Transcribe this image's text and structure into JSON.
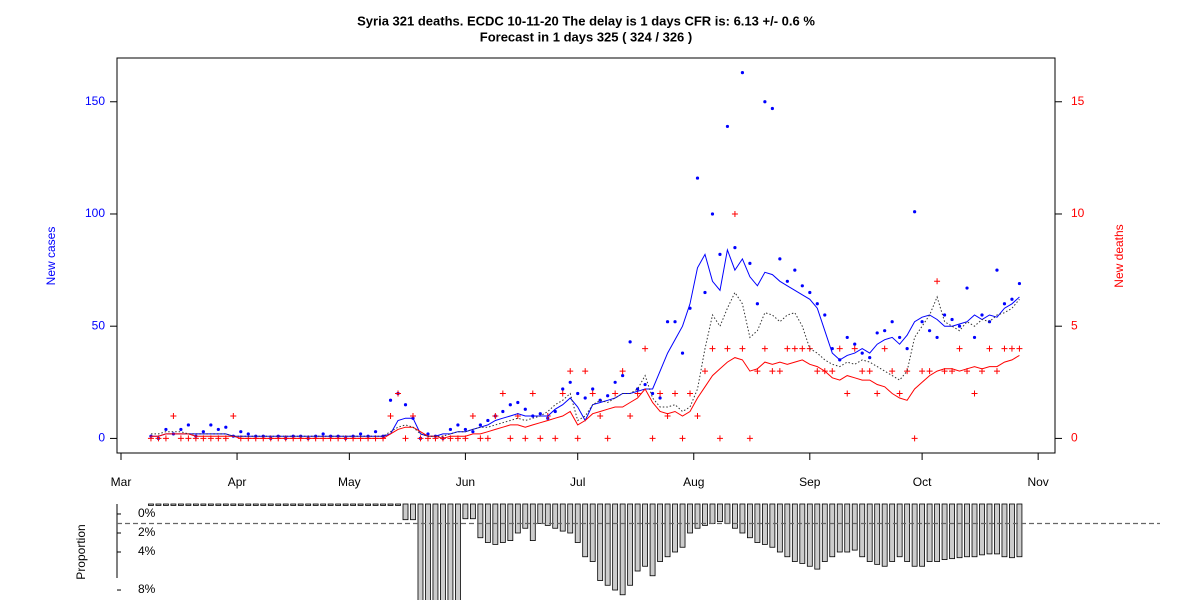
{
  "chart_data": [
    {
      "type": "scatter",
      "title": "Syria 321 deaths. ECDC 10-11-20 The delay is 1 days CFR is: 6.13 +/- 0.6 %",
      "subtitle": "Forecast in 1 days 325 ( 324 / 326 )",
      "ylabel": "New cases",
      "y2label": "New deaths",
      "ylabel_color": "#0000ff",
      "y2label_color": "#ff0000",
      "xlim": [
        -1.07,
        249.5
      ],
      "xticks": [
        {
          "value": 0,
          "label": "Mar"
        },
        {
          "value": 31,
          "label": "Apr"
        },
        {
          "value": 61,
          "label": "May"
        },
        {
          "value": 92,
          "label": "Jun"
        },
        {
          "value": 122,
          "label": "Jul"
        },
        {
          "value": 153,
          "label": "Aug"
        },
        {
          "value": 184,
          "label": "Sep"
        },
        {
          "value": 214,
          "label": "Oct"
        },
        {
          "value": 245,
          "label": "Nov"
        }
      ],
      "ylim": [
        -6.5,
        169.5
      ],
      "yticks": [
        0,
        50,
        100,
        150
      ],
      "y2lim": [
        -0.65,
        16.95
      ],
      "y2ticks": [
        0,
        5,
        10,
        15
      ],
      "x": [
        8,
        10,
        12,
        14,
        16,
        18,
        20,
        22,
        24,
        26,
        28,
        30,
        32,
        34,
        36,
        38,
        40,
        42,
        44,
        46,
        48,
        50,
        52,
        54,
        56,
        58,
        60,
        62,
        64,
        66,
        68,
        70,
        72,
        74,
        76,
        78,
        80,
        82,
        84,
        86,
        88,
        90,
        92,
        94,
        96,
        98,
        100,
        102,
        104,
        106,
        108,
        110,
        112,
        114,
        116,
        118,
        120,
        122,
        124,
        126,
        128,
        130,
        132,
        134,
        136,
        138,
        140,
        142,
        144,
        146,
        148,
        150,
        152,
        154,
        156,
        158,
        160,
        162,
        164,
        166,
        168,
        170,
        172,
        174,
        176,
        178,
        180,
        182,
        184,
        186,
        188,
        190,
        192,
        194,
        196,
        198,
        200,
        202,
        204,
        206,
        208,
        210,
        212,
        214,
        216,
        218,
        220,
        222,
        224,
        226,
        228,
        230,
        232,
        234,
        236,
        238,
        240
      ],
      "series": [
        {
          "color": "#0000ff",
          "marker": "dot",
          "values": [
            1,
            0,
            4,
            2,
            4,
            6,
            1,
            3,
            6,
            4,
            5,
            1,
            3,
            2,
            1,
            1,
            0,
            1,
            0,
            1,
            1,
            0,
            1,
            2,
            1,
            1,
            0,
            1,
            2,
            1,
            3,
            1,
            17,
            20,
            15,
            9,
            0,
            2,
            1,
            0,
            4,
            6,
            4,
            3,
            6,
            8,
            10,
            12,
            15,
            16,
            13,
            10,
            11,
            9,
            12,
            22,
            25,
            20,
            18,
            22,
            17,
            19,
            25,
            28,
            43,
            22,
            24,
            20,
            18,
            52,
            52,
            38,
            58,
            116,
            65,
            100,
            82,
            139,
            85,
            163,
            78,
            60,
            150,
            147,
            80,
            70,
            75,
            68,
            65,
            60,
            55,
            40,
            35,
            45,
            42,
            38,
            36,
            47,
            48,
            52,
            45,
            40,
            101,
            52,
            48,
            45,
            55,
            53,
            50,
            67,
            45,
            55,
            52,
            75,
            60,
            62,
            69
          ]
        },
        {
          "color": "#ff0000",
          "marker": "plus",
          "axis": "y2",
          "values": [
            0,
            0,
            0,
            1,
            0,
            0,
            0,
            0,
            0,
            0,
            0,
            1,
            0,
            0,
            0,
            0,
            0,
            0,
            0,
            0,
            0,
            0,
            0,
            0,
            0,
            0,
            0,
            0,
            0,
            0,
            0,
            0,
            1,
            2,
            0,
            1,
            0,
            0,
            0,
            0,
            0,
            0,
            0,
            1,
            0,
            0,
            1,
            2,
            0,
            1,
            0,
            2,
            0,
            1,
            0,
            2,
            3,
            0,
            3,
            2,
            1,
            0,
            2,
            3,
            1,
            2,
            4,
            0,
            2,
            1,
            2,
            0,
            2,
            1,
            3,
            4,
            0,
            4,
            10,
            4,
            0,
            3,
            4,
            3,
            3,
            4,
            4,
            4,
            4,
            3,
            3,
            3,
            4,
            2,
            4,
            3,
            3,
            2,
            4,
            3,
            2,
            3,
            0,
            3,
            3,
            7,
            3,
            3,
            4,
            3,
            2,
            3,
            4,
            3,
            4,
            4,
            4
          ]
        },
        {
          "color": "#0000ff",
          "line": "solid",
          "values": [
            1,
            1,
            2,
            2,
            2,
            2,
            2,
            2,
            2,
            2,
            2,
            1,
            1,
            1,
            1,
            1,
            1,
            1,
            1,
            1,
            1,
            1,
            1,
            1,
            1,
            1,
            1,
            1,
            1,
            1,
            1,
            1,
            2,
            8,
            9,
            9,
            2,
            1,
            1,
            2,
            2,
            3,
            3,
            4,
            5,
            6,
            8,
            9,
            10,
            11,
            10,
            10,
            10,
            10,
            13,
            15,
            18,
            14,
            8,
            15,
            16,
            17,
            18,
            20,
            20,
            21,
            22,
            22,
            30,
            38,
            44,
            50,
            60,
            76,
            82,
            70,
            66,
            84,
            75,
            80,
            72,
            68,
            74,
            73,
            70,
            68,
            66,
            64,
            62,
            58,
            48,
            38,
            35,
            37,
            38,
            40,
            38,
            42,
            44,
            45,
            42,
            46,
            52,
            54,
            55,
            53,
            50,
            50,
            51,
            52,
            55,
            53,
            55,
            54,
            58,
            60,
            63
          ]
        },
        {
          "color": "#ff0000",
          "line": "solid",
          "axis": "y2",
          "values": [
            0.1,
            0.1,
            0.2,
            0.2,
            0.2,
            0.2,
            0.1,
            0.1,
            0.1,
            0.1,
            0.1,
            0.1,
            0,
            0,
            0,
            0,
            0,
            0,
            0,
            0,
            0,
            0,
            0,
            0,
            0,
            0,
            0,
            0,
            0,
            0,
            0,
            0,
            0.2,
            0.4,
            0.5,
            0.5,
            0.3,
            0.1,
            0.1,
            0,
            0.1,
            0.1,
            0.1,
            0.2,
            0.2,
            0.3,
            0.4,
            0.5,
            0.6,
            0.6,
            0.5,
            0.6,
            0.7,
            0.8,
            0.9,
            1.0,
            1.2,
            0.6,
            0.8,
            1.1,
            1.2,
            1.3,
            1.4,
            1.4,
            1.6,
            1.8,
            2.2,
            1.6,
            1.2,
            1.1,
            1.2,
            1.0,
            1.2,
            1.8,
            2.3,
            2.8,
            3.1,
            3.4,
            3.6,
            3.5,
            3.0,
            3.1,
            3.4,
            3.3,
            3.4,
            3.3,
            3.4,
            3.5,
            3.3,
            3.2,
            3.0,
            2.7,
            2.6,
            2.8,
            2.7,
            2.6,
            2.6,
            2.4,
            2.3,
            2.0,
            1.8,
            1.7,
            2.2,
            2.5,
            2.8,
            3.0,
            3.1,
            3.1,
            3.0,
            3.1,
            3.2,
            3.1,
            3.2,
            3.2,
            3.4,
            3.5,
            3.7
          ]
        },
        {
          "color": "#333333",
          "line": "dotted",
          "values": [
            2,
            2,
            3,
            3,
            3,
            2,
            2,
            2,
            2,
            2,
            2,
            1,
            1,
            1,
            1,
            1,
            1,
            1,
            1,
            1,
            1,
            1,
            1,
            1,
            1,
            1,
            1,
            1,
            1,
            1,
            1,
            1,
            3,
            5,
            6,
            5,
            2,
            1,
            1,
            1,
            2,
            3,
            3,
            4,
            5,
            5,
            6,
            7,
            8,
            9,
            8,
            9,
            10,
            12,
            15,
            17,
            20,
            8,
            10,
            15,
            17,
            16,
            18,
            20,
            20,
            22,
            28,
            18,
            14,
            14,
            15,
            12,
            14,
            22,
            40,
            55,
            50,
            58,
            65,
            60,
            45,
            48,
            56,
            55,
            52,
            55,
            56,
            50,
            40,
            38,
            35,
            33,
            32,
            34,
            33,
            35,
            34,
            32,
            30,
            28,
            26,
            30,
            45,
            50,
            55,
            63,
            52,
            50,
            48,
            52,
            50,
            53,
            52,
            55,
            56,
            58,
            62
          ]
        }
      ]
    },
    {
      "type": "bar",
      "ylabel": "Proportion",
      "xlim": [
        -1.07,
        249.5
      ],
      "ylim": [
        -1.05,
        9.05
      ],
      "yticks": [
        {
          "value": 0,
          "label": "0%"
        },
        {
          "value": 2,
          "label": "2%"
        },
        {
          "value": 4,
          "label": "4%"
        },
        {
          "value": 8,
          "label": "8%"
        }
      ],
      "reference": 1,
      "color": "#cccccc",
      "x": [
        8,
        10,
        12,
        14,
        16,
        18,
        20,
        22,
        24,
        26,
        28,
        30,
        32,
        34,
        36,
        38,
        40,
        42,
        44,
        46,
        48,
        50,
        52,
        54,
        56,
        58,
        60,
        62,
        64,
        66,
        68,
        70,
        72,
        74,
        76,
        78,
        80,
        82,
        84,
        86,
        88,
        90,
        92,
        94,
        96,
        98,
        100,
        102,
        104,
        106,
        108,
        110,
        112,
        114,
        116,
        118,
        120,
        122,
        124,
        126,
        128,
        130,
        132,
        134,
        136,
        138,
        140,
        142,
        144,
        146,
        148,
        150,
        152,
        154,
        156,
        158,
        160,
        162,
        164,
        166,
        168,
        170,
        172,
        174,
        176,
        178,
        180,
        182,
        184,
        186,
        188,
        190,
        192,
        194,
        196,
        198,
        200,
        202,
        204,
        206,
        208,
        210,
        212,
        214,
        216,
        218,
        220,
        222,
        224,
        226,
        228,
        230,
        232,
        234,
        236,
        238,
        240
      ],
      "values": [
        -0.9,
        -0.9,
        -0.9,
        -0.9,
        -0.9,
        -0.9,
        -0.9,
        -0.9,
        -0.9,
        -0.9,
        -0.9,
        -0.9,
        -0.9,
        -0.9,
        -0.9,
        -0.9,
        -0.9,
        -0.9,
        -0.9,
        -0.9,
        -0.9,
        -0.9,
        -0.9,
        -0.9,
        -0.9,
        -0.9,
        -0.9,
        -0.9,
        -0.9,
        -0.9,
        -0.9,
        -0.9,
        -0.9,
        -0.9,
        0.6,
        0.6,
        9.5,
        9.5,
        9.5,
        9.5,
        9.5,
        9.5,
        0.5,
        0.5,
        2.5,
        3,
        3.2,
        3,
        2.8,
        2,
        1.5,
        2.8,
        1,
        1.2,
        1.5,
        1.8,
        2,
        3,
        4.5,
        5,
        7,
        7.5,
        8,
        8.5,
        7.5,
        6,
        5.5,
        6.5,
        5,
        4.5,
        4,
        3.5,
        2,
        1.5,
        1.2,
        1,
        0.8,
        1,
        1.5,
        2,
        2.5,
        3,
        3.2,
        3.5,
        4,
        4.5,
        5,
        5.2,
        5.5,
        5.8,
        5,
        4.5,
        4,
        4,
        3.8,
        4.5,
        5,
        5.3,
        5.5,
        5,
        4.5,
        5,
        5.5,
        5.5,
        5,
        5,
        4.8,
        4.7,
        4.6,
        4.5,
        4.5,
        4.3,
        4.2,
        4.2,
        4.5,
        4.6,
        4.5
      ]
    }
  ]
}
